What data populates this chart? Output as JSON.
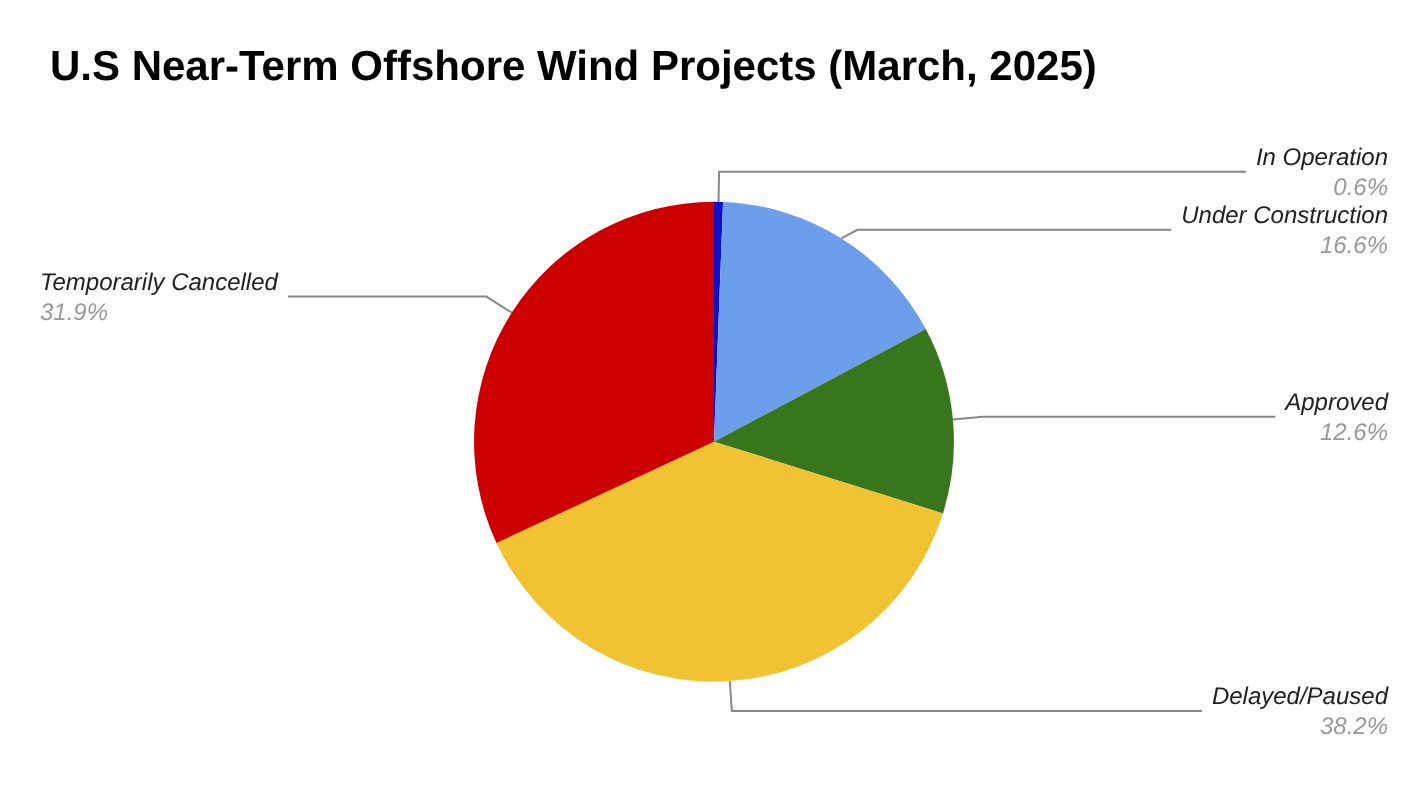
{
  "chart_data": {
    "type": "pie",
    "title": "U.S Near-Term Offshore Wind Projects (March, 2025)",
    "categories": [
      "In Operation",
      "Under Construction",
      "Approved",
      "Delayed/Paused",
      "Temporarily Cancelled"
    ],
    "values": [
      0.6,
      16.6,
      12.6,
      38.2,
      31.9
    ],
    "value_labels": [
      "0.6%",
      "16.6%",
      "12.6%",
      "38.2%",
      "31.9%"
    ],
    "colors": [
      "#1010c8",
      "#6d9eeb",
      "#38761d",
      "#f1c232",
      "#cc0000"
    ]
  }
}
